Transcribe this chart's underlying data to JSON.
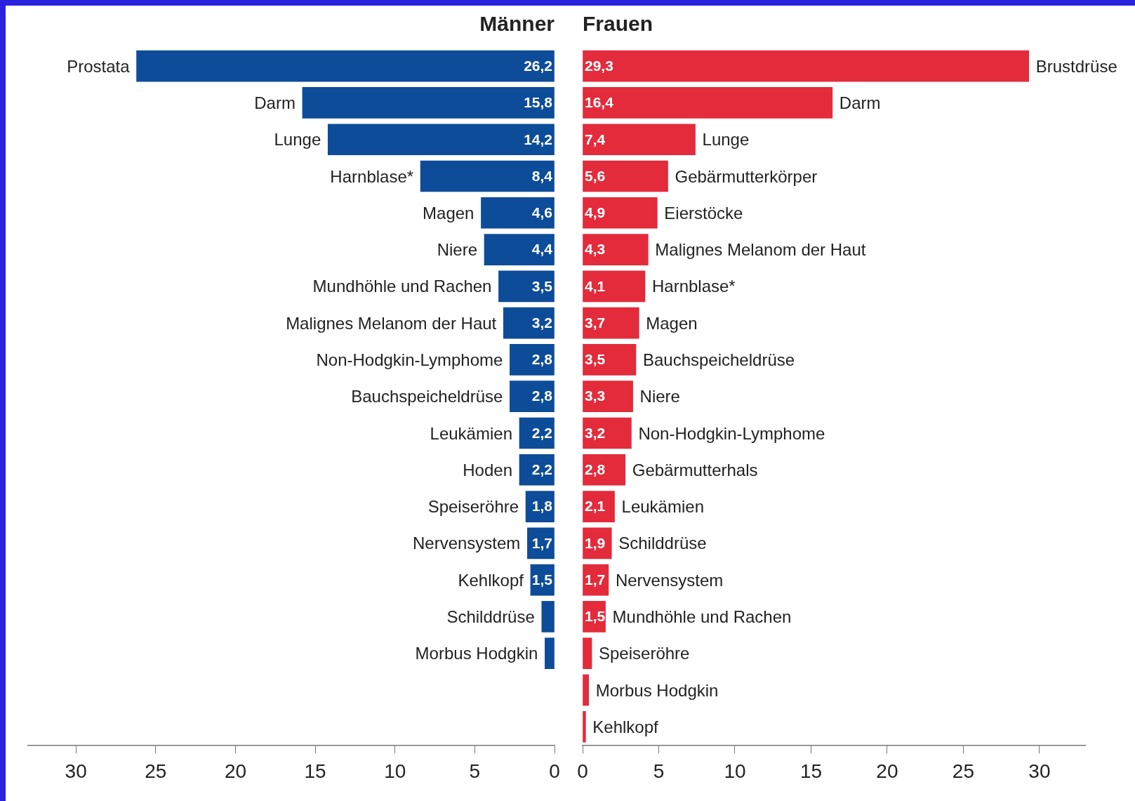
{
  "chart_data": [
    {
      "type": "bar",
      "orientation": "horizontal",
      "title": "Männer",
      "color": "#0d4c99",
      "categories": [
        "Prostata",
        "Darm",
        "Lunge",
        "Harnblase*",
        "Magen",
        "Niere",
        "Mundhöhle und Rachen",
        "Malignes Melanom der Haut",
        "Non-Hodgkin-Lymphome",
        "Bauchspeicheldrüse",
        "Leukämien",
        "Hoden",
        "Speiseröhre",
        "Nervensystem",
        "Kehlkopf",
        "Schilddrüse",
        "Morbus Hodgkin"
      ],
      "values": [
        26.2,
        15.8,
        14.2,
        8.4,
        4.6,
        4.4,
        3.5,
        3.2,
        2.8,
        2.8,
        2.2,
        2.2,
        1.8,
        1.7,
        1.5,
        0.8,
        0.6
      ],
      "value_labels": [
        "26,2",
        "15,8",
        "14,2",
        "8,4",
        "4,6",
        "4,4",
        "3,5",
        "3,2",
        "2,8",
        "2,8",
        "2,2",
        "2,2",
        "1,8",
        "1,7",
        "1,5",
        null,
        null
      ],
      "xlim": [
        33,
        0
      ],
      "xticks": [
        0,
        5,
        10,
        15,
        20,
        25,
        30
      ]
    },
    {
      "type": "bar",
      "orientation": "horizontal",
      "title": "Frauen",
      "color": "#e32b3b",
      "categories": [
        "Brustdrüse",
        "Darm",
        "Lunge",
        "Gebärmutterkörper",
        "Eierstöcke",
        "Malignes Melanom der Haut",
        "Harnblase*",
        "Magen",
        "Bauchspeicheldrüse",
        "Niere",
        "Non-Hodgkin-Lymphome",
        "Gebärmutterhals",
        "Leukämien",
        "Schilddrüse",
        "Nervensystem",
        "Mundhöhle und Rachen",
        "Speiseröhre",
        "Morbus Hodgkin",
        "Kehlkopf"
      ],
      "values": [
        29.3,
        16.4,
        7.4,
        5.6,
        4.9,
        4.3,
        4.1,
        3.7,
        3.5,
        3.3,
        3.2,
        2.8,
        2.1,
        1.9,
        1.7,
        1.5,
        0.6,
        0.4,
        0.2
      ],
      "value_labels": [
        "29,3",
        "16,4",
        "7,4",
        "5,6",
        "4,9",
        "4,3",
        "4,1",
        "3,7",
        "3,5",
        "3,3",
        "3,2",
        "2,8",
        "2,1",
        "1,9",
        "1,7",
        "1,5",
        null,
        null,
        null
      ],
      "xlim": [
        0,
        33
      ],
      "xticks": [
        0,
        5,
        10,
        15,
        20,
        25,
        30
      ]
    }
  ]
}
